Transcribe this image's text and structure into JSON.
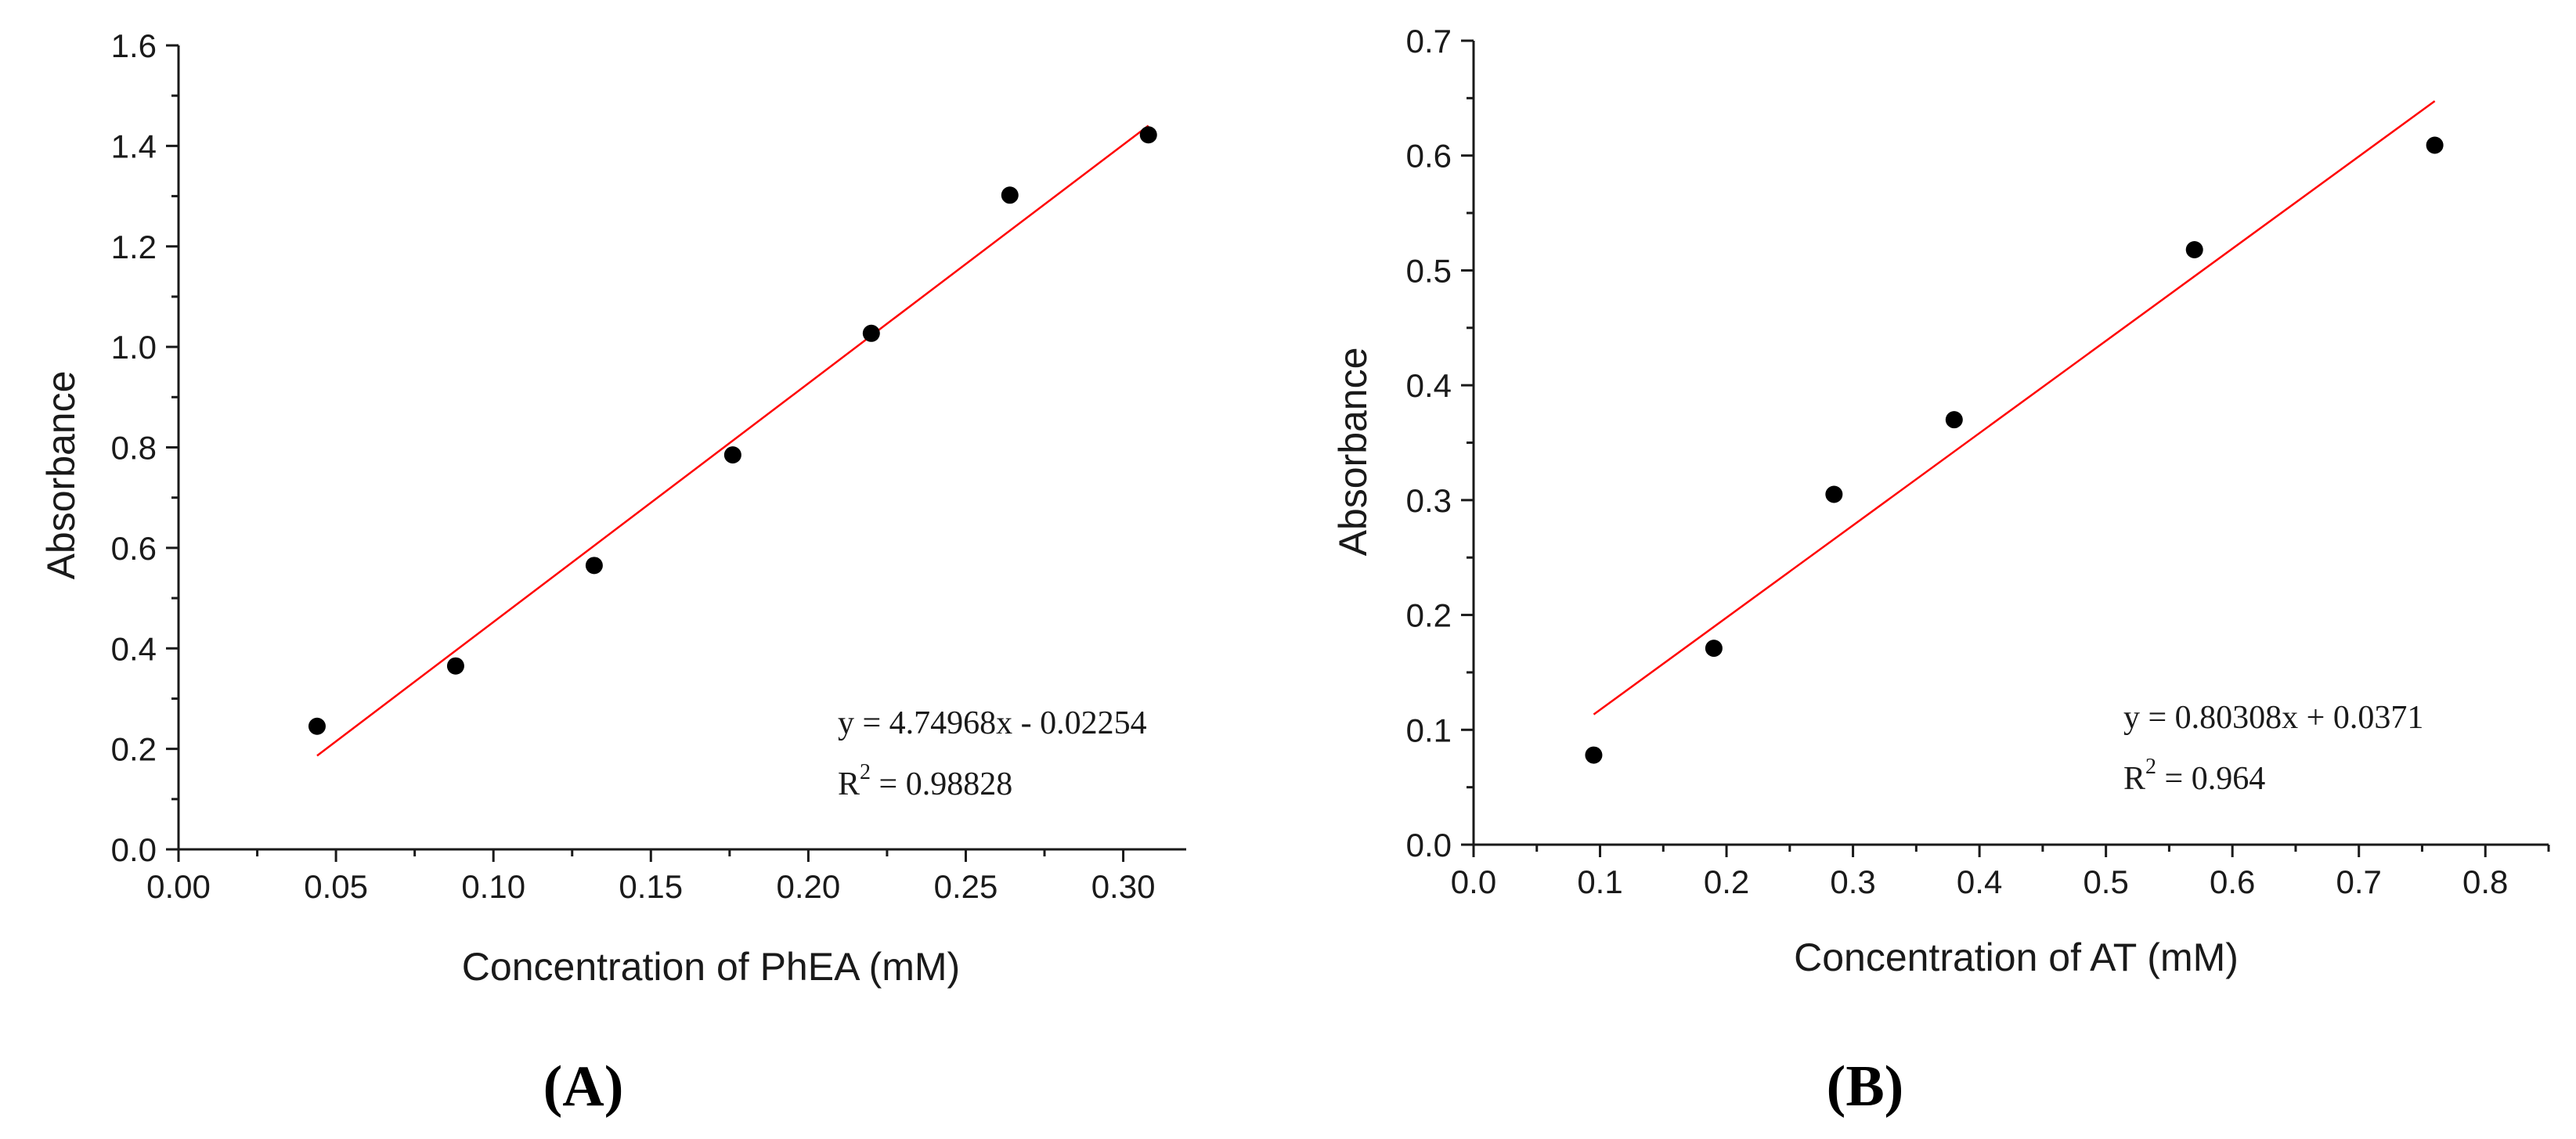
{
  "chart_data": [
    {
      "type": "scatter",
      "panel_label": "(A)",
      "xlabel": "Concentration of PhEA (mM)",
      "ylabel": "Absorbance",
      "xlim": [
        0.0,
        0.32
      ],
      "ylim": [
        0.0,
        1.6
      ],
      "x_ticks": [
        "0.00",
        "0.05",
        "0.10",
        "0.15",
        "0.20",
        "0.25",
        "0.30"
      ],
      "x_tick_values": [
        0.0,
        0.05,
        0.1,
        0.15,
        0.2,
        0.25,
        0.3
      ],
      "y_ticks": [
        "0.0",
        "0.2",
        "0.4",
        "0.6",
        "0.8",
        "1.0",
        "1.2",
        "1.4",
        "1.6"
      ],
      "y_tick_values": [
        0.0,
        0.2,
        0.4,
        0.6,
        0.8,
        1.0,
        1.2,
        1.4,
        1.6
      ],
      "points": [
        {
          "x": 0.044,
          "y": 0.245
        },
        {
          "x": 0.088,
          "y": 0.365
        },
        {
          "x": 0.132,
          "y": 0.565
        },
        {
          "x": 0.176,
          "y": 0.785
        },
        {
          "x": 0.22,
          "y": 1.027
        },
        {
          "x": 0.264,
          "y": 1.302
        },
        {
          "x": 0.308,
          "y": 1.422
        }
      ],
      "fit": {
        "slope": 4.74968,
        "intercept": -0.02254,
        "x_range": [
          0.044,
          0.308
        ]
      },
      "equation": "y = 4.74968x - 0.02254",
      "r2_prefix": "R",
      "r2_sup": "2",
      "r2_value": " = 0.98828",
      "grid": false
    },
    {
      "type": "scatter",
      "panel_label": "(B)",
      "xlabel": "Concentration of AT (mM)",
      "ylabel": "Absorbance",
      "xlim": [
        0.0,
        0.85
      ],
      "ylim": [
        0.0,
        0.7
      ],
      "x_ticks": [
        "0.0",
        "0.1",
        "0.2",
        "0.3",
        "0.4",
        "0.5",
        "0.6",
        "0.7",
        "0.8"
      ],
      "x_tick_values": [
        0.0,
        0.1,
        0.2,
        0.3,
        0.4,
        0.5,
        0.6,
        0.7,
        0.8
      ],
      "y_ticks": [
        "0.0",
        "0.1",
        "0.2",
        "0.3",
        "0.4",
        "0.5",
        "0.6",
        "0.7"
      ],
      "y_tick_values": [
        0.0,
        0.1,
        0.2,
        0.3,
        0.4,
        0.5,
        0.6,
        0.7
      ],
      "points": [
        {
          "x": 0.095,
          "y": 0.078
        },
        {
          "x": 0.19,
          "y": 0.171
        },
        {
          "x": 0.285,
          "y": 0.305
        },
        {
          "x": 0.38,
          "y": 0.37
        },
        {
          "x": 0.57,
          "y": 0.518
        },
        {
          "x": 0.76,
          "y": 0.609
        }
      ],
      "fit": {
        "slope": 0.80308,
        "intercept": 0.0371,
        "x_range": [
          0.095,
          0.76
        ]
      },
      "equation": "y = 0.80308x + 0.0371",
      "r2_prefix": "R",
      "r2_sup": "2",
      "r2_value": " = 0.964",
      "grid": false
    }
  ],
  "colors": {
    "fit_line": "#ff0000",
    "points": "#000000",
    "axes": "#1a1a1a"
  }
}
